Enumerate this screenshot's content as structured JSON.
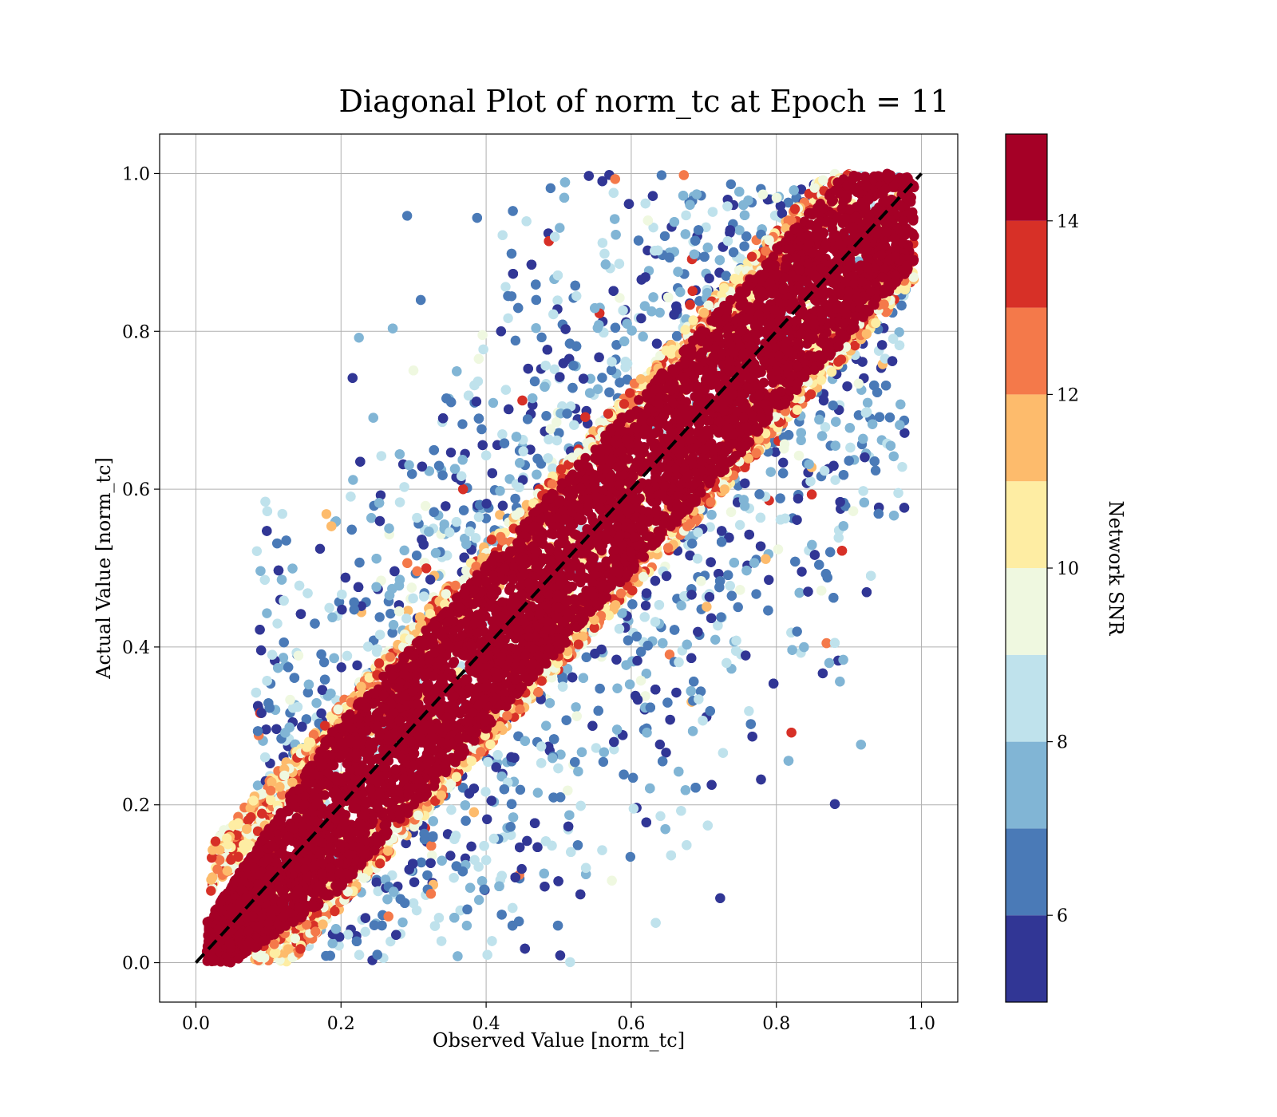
{
  "chart_data": {
    "type": "scatter",
    "title": "Diagonal Plot of norm_tc at Epoch = 11",
    "xlabel": "Observed Value [norm_tc]",
    "ylabel": "Actual Value [norm_tc]",
    "xlim": [
      -0.05,
      1.05
    ],
    "ylim": [
      -0.05,
      1.05
    ],
    "x_ticks": [
      "0.0",
      "0.2",
      "0.4",
      "0.6",
      "0.8",
      "1.0"
    ],
    "y_ticks": [
      "0.0",
      "0.2",
      "0.4",
      "0.6",
      "0.8",
      "1.0"
    ],
    "grid": true,
    "reference_line": {
      "style": "dashed",
      "color": "#000000",
      "from": [
        0,
        0
      ],
      "to": [
        1,
        1
      ]
    },
    "colorbar": {
      "label": "Network SNR",
      "range": [
        5,
        15
      ],
      "ticks": [
        "6",
        "8",
        "10",
        "12",
        "14"
      ],
      "bins": [
        {
          "from": 5,
          "to": 6,
          "color": "#313695"
        },
        {
          "from": 6,
          "to": 7,
          "color": "#4a7ab7"
        },
        {
          "from": 7,
          "to": 8,
          "color": "#81b5d5"
        },
        {
          "from": 8,
          "to": 9,
          "color": "#bfe2ec"
        },
        {
          "from": 9,
          "to": 10,
          "color": "#eff8e0"
        },
        {
          "from": 10,
          "to": 11,
          "color": "#feeda3"
        },
        {
          "from": 11,
          "to": 12,
          "color": "#fdbb6c"
        },
        {
          "from": 12,
          "to": 13,
          "color": "#f4794a"
        },
        {
          "from": 13,
          "to": 14,
          "color": "#d73027"
        },
        {
          "from": 14,
          "to": 15,
          "color": "#a50026"
        }
      ]
    },
    "series": [
      {
        "description_of_distribution": "dense diagonal band",
        "points": [
          {
            "x": 0.05,
            "y": 0.05,
            "snr": 15
          },
          {
            "x": 0.08,
            "y": 0.12,
            "snr": 15
          },
          {
            "x": 0.1,
            "y": 0.05,
            "snr": 15
          },
          {
            "x": 0.15,
            "y": 0.2,
            "snr": 15
          },
          {
            "x": 0.2,
            "y": 0.15,
            "snr": 15
          },
          {
            "x": 0.25,
            "y": 0.3,
            "snr": 15
          },
          {
            "x": 0.3,
            "y": 0.25,
            "snr": 15
          },
          {
            "x": 0.35,
            "y": 0.4,
            "snr": 15
          },
          {
            "x": 0.4,
            "y": 0.35,
            "snr": 15
          },
          {
            "x": 0.45,
            "y": 0.5,
            "snr": 15
          },
          {
            "x": 0.5,
            "y": 0.45,
            "snr": 15
          },
          {
            "x": 0.55,
            "y": 0.6,
            "snr": 15
          },
          {
            "x": 0.6,
            "y": 0.55,
            "snr": 15
          },
          {
            "x": 0.65,
            "y": 0.7,
            "snr": 15
          },
          {
            "x": 0.7,
            "y": 0.65,
            "snr": 15
          },
          {
            "x": 0.75,
            "y": 0.8,
            "snr": 15
          },
          {
            "x": 0.8,
            "y": 0.75,
            "snr": 15
          },
          {
            "x": 0.85,
            "y": 0.9,
            "snr": 15
          },
          {
            "x": 0.9,
            "y": 0.85,
            "snr": 15
          },
          {
            "x": 0.95,
            "y": 0.98,
            "snr": 15
          }
        ]
      }
    ]
  }
}
